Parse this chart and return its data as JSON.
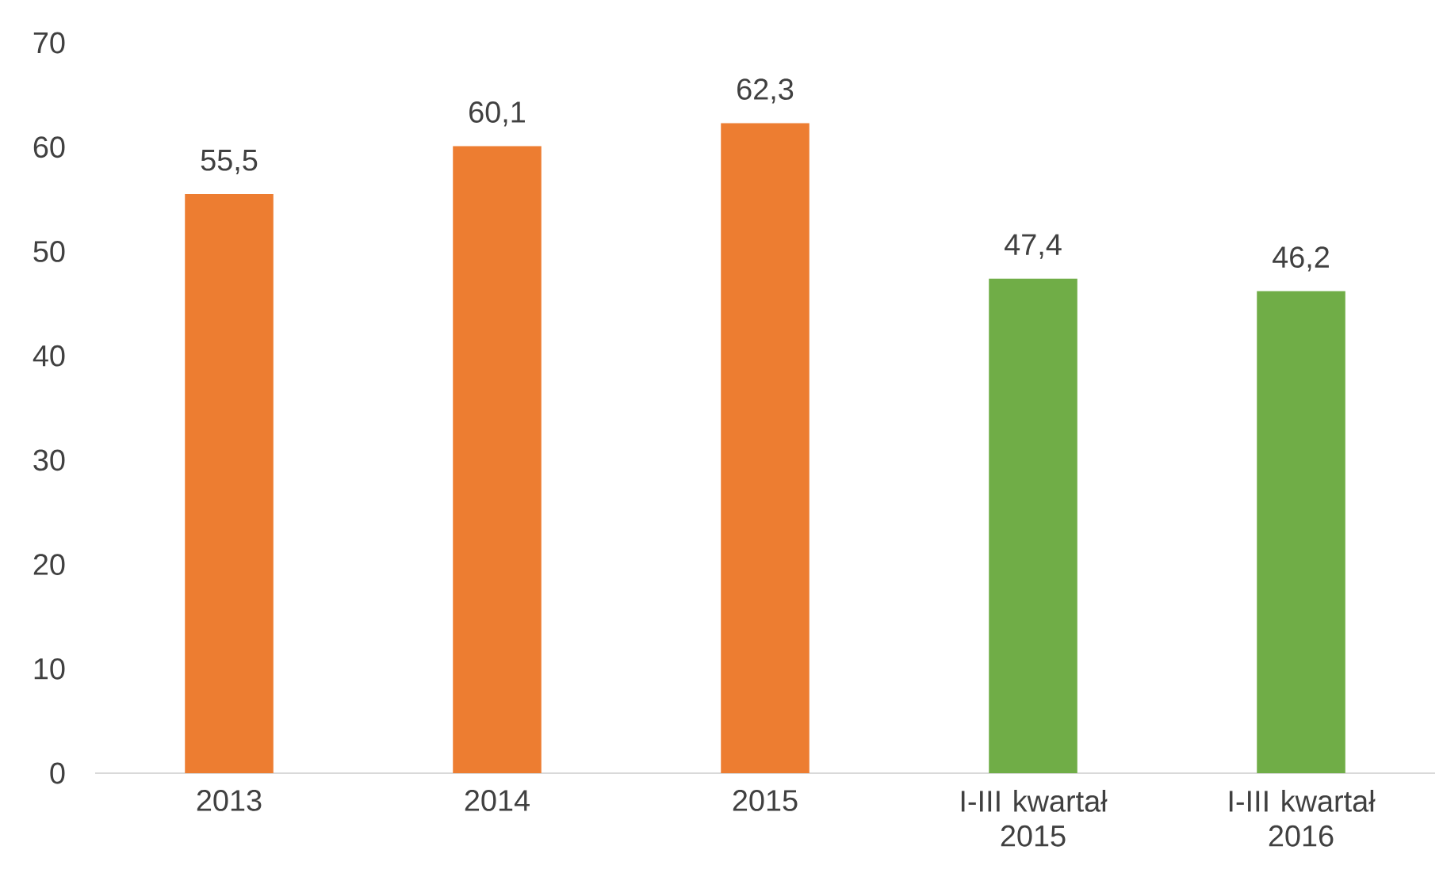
{
  "chart_data": {
    "type": "bar",
    "categories": [
      "2013",
      "2014",
      "2015",
      "I-III kwartał 2015",
      "I-III kwartał 2016"
    ],
    "values": [
      55.5,
      60.1,
      62.3,
      47.4,
      46.2
    ],
    "colors": [
      "#ed7d31",
      "#ed7d31",
      "#ed7d31",
      "#70ad47",
      "#70ad47"
    ],
    "value_labels": [
      "55,5",
      "60,1",
      "62,3",
      "47,4",
      "46,2"
    ],
    "ylim": [
      0,
      70
    ],
    "yticks": [
      0,
      10,
      20,
      30,
      40,
      50,
      60,
      70
    ]
  }
}
